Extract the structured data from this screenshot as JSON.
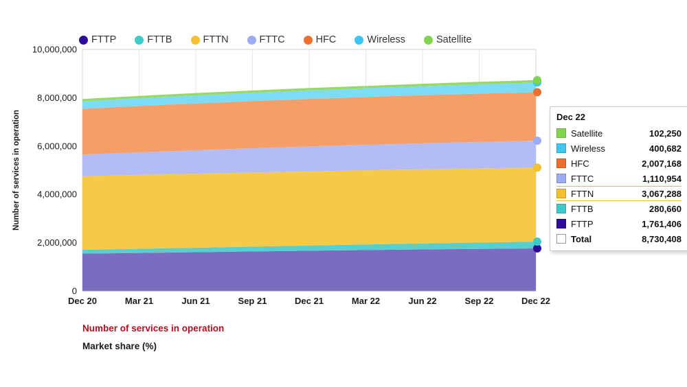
{
  "legend": {
    "items": [
      {
        "label": "FTTP",
        "color": "#2d0b9b"
      },
      {
        "label": "FTTB",
        "color": "#3fc9c9"
      },
      {
        "label": "FTTN",
        "color": "#f3c02f"
      },
      {
        "label": "FTTC",
        "color": "#9dabf3"
      },
      {
        "label": "HFC",
        "color": "#ee6f2d"
      },
      {
        "label": "Wireless",
        "color": "#3cc7f2"
      },
      {
        "label": "Satellite",
        "color": "#82d34d"
      }
    ]
  },
  "chart_data": {
    "type": "area",
    "stacked": true,
    "title": "",
    "xlabel": "",
    "ylabel": "Number of services in operation",
    "ylim": [
      0,
      10000000
    ],
    "ytick_interval": 2000000,
    "grid": "vertical",
    "legend_position": "top",
    "categories": [
      "Dec 20",
      "Mar 21",
      "Jun 21",
      "Sep 21",
      "Dec 21",
      "Mar 22",
      "Jun 22",
      "Sep 22",
      "Dec 22"
    ],
    "series": [
      {
        "name": "FTTP",
        "dot_color": "#2d0b9b",
        "fill": "#7b6cc3",
        "values": [
          1545000,
          1575000,
          1605000,
          1635000,
          1665000,
          1692000,
          1718000,
          1742000,
          1761406
        ]
      },
      {
        "name": "FTTB",
        "dot_color": "#3fc9c9",
        "fill": "#58cfcf",
        "values": [
          158000,
          172000,
          186000,
          200000,
          216000,
          232000,
          248000,
          264000,
          280660
        ]
      },
      {
        "name": "FTTN",
        "dot_color": "#f3c02f",
        "fill": "#f6ca49",
        "values": [
          3048000,
          3058000,
          3064000,
          3068000,
          3070000,
          3070000,
          3069000,
          3068000,
          3067288
        ]
      },
      {
        "name": "FTTC",
        "dot_color": "#9dabf3",
        "fill": "#b3bdf4",
        "values": [
          895000,
          935000,
          972000,
          1004000,
          1032000,
          1056000,
          1077000,
          1095000,
          1110954
        ]
      },
      {
        "name": "HFC",
        "dot_color": "#ee6f2d",
        "fill": "#f69e67",
        "values": [
          1895000,
          1918000,
          1938000,
          1955000,
          1970000,
          1982000,
          1992000,
          2000000,
          2007168
        ]
      },
      {
        "name": "Wireless",
        "dot_color": "#3cc7f2",
        "fill": "#7ddbf5",
        "values": [
          312000,
          322000,
          331000,
          340000,
          349000,
          359000,
          372000,
          387000,
          400682
        ]
      },
      {
        "name": "Satellite",
        "dot_color": "#82d34d",
        "fill": "#96da64",
        "values": [
          94000,
          95000,
          96000,
          97000,
          98000,
          99000,
          100000,
          101000,
          102250
        ]
      }
    ]
  },
  "tooltip": {
    "header": "Dec 22",
    "highlight_row": "FTTN",
    "rows": [
      {
        "label": "Satellite",
        "value": "102,250",
        "color": "#82d34d",
        "is_total": false
      },
      {
        "label": "Wireless",
        "value": "400,682",
        "color": "#3cc7f2",
        "is_total": false
      },
      {
        "label": "HFC",
        "value": "2,007,168",
        "color": "#ee6f2d",
        "is_total": false
      },
      {
        "label": "FTTC",
        "value": "1,110,954",
        "color": "#9dabf3",
        "is_total": false
      },
      {
        "label": "FTTN",
        "value": "3,067,288",
        "color": "#f3c02f",
        "is_total": false
      },
      {
        "label": "FTTB",
        "value": "280,660",
        "color": "#3fc9c9",
        "is_total": false
      },
      {
        "label": "FTTP",
        "value": "1,761,406",
        "color": "#2d0b9b",
        "is_total": false
      },
      {
        "label": "Total",
        "value": "8,730,408",
        "color": "#ffffff",
        "is_total": true
      }
    ]
  },
  "footer_links": [
    {
      "label": "Number of services in operation",
      "color": "#b50d1f",
      "active": true
    },
    {
      "label": "Market share (%)",
      "color": "#1a1a1a",
      "active": false
    }
  ]
}
